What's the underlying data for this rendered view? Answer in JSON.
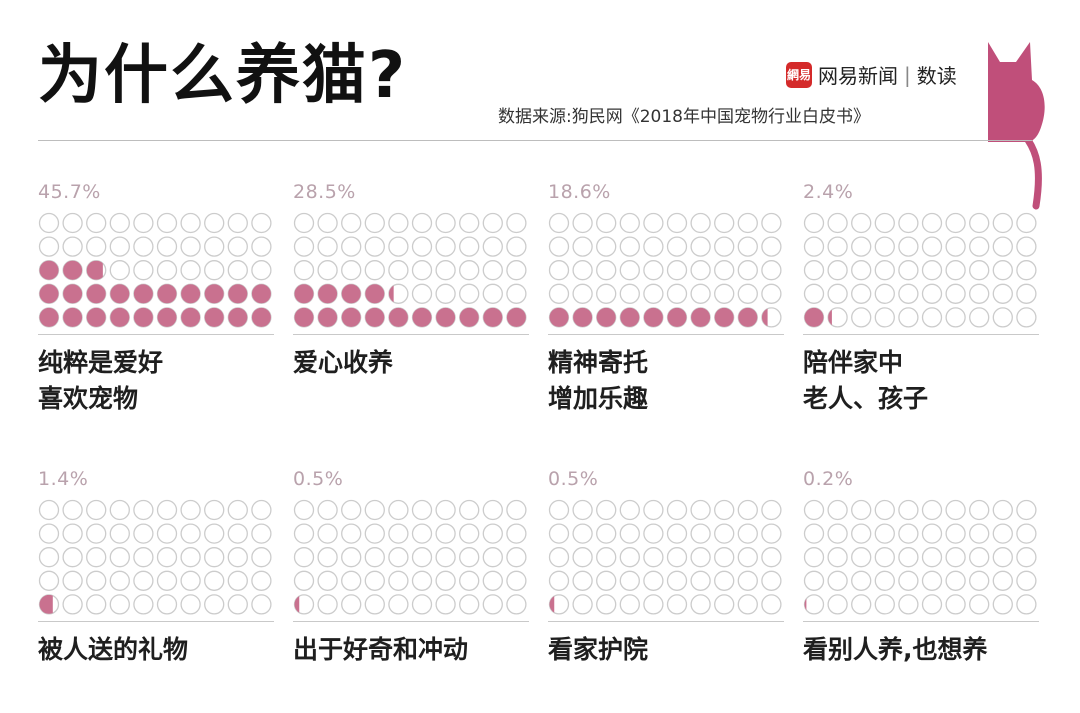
{
  "header": {
    "title": "为什么养猫?",
    "source": "数据来源:狗民网《2018年中国宠物行业白皮书》",
    "brand_logo_text": "網易",
    "brand_name": "网易新闻",
    "brand_sep": "|",
    "brand_section": "数读"
  },
  "colors": {
    "filled": "#c9718f",
    "outline": "#cccccc",
    "percent_text": "#b9a2ac",
    "cat": "#c04f7a"
  },
  "chart_data": {
    "type": "waffle",
    "title": "为什么养猫?",
    "grid": {
      "rows": 5,
      "cols": 10,
      "max": 50
    },
    "panels": [
      {
        "percent_label": "45.7%",
        "value": 45.7,
        "label_lines": [
          "纯粹是爱好",
          "喜欢宠物"
        ]
      },
      {
        "percent_label": "28.5%",
        "value": 28.5,
        "label_lines": [
          "爱心收养"
        ]
      },
      {
        "percent_label": "18.6%",
        "value": 18.6,
        "label_lines": [
          "精神寄托",
          "增加乐趣"
        ]
      },
      {
        "percent_label": "2.4%",
        "value": 2.4,
        "label_lines": [
          "陪伴家中",
          "老人、孩子"
        ]
      },
      {
        "percent_label": "1.4%",
        "value": 1.4,
        "label_lines": [
          "被人送的礼物"
        ]
      },
      {
        "percent_label": "0.5%",
        "value": 0.5,
        "label_lines": [
          "出于好奇和冲动"
        ]
      },
      {
        "percent_label": "0.5%",
        "value": 0.5,
        "label_lines": [
          "看家护院"
        ]
      },
      {
        "percent_label": "0.2%",
        "value": 0.2,
        "label_lines": [
          "看别人养,也想养"
        ]
      }
    ]
  }
}
